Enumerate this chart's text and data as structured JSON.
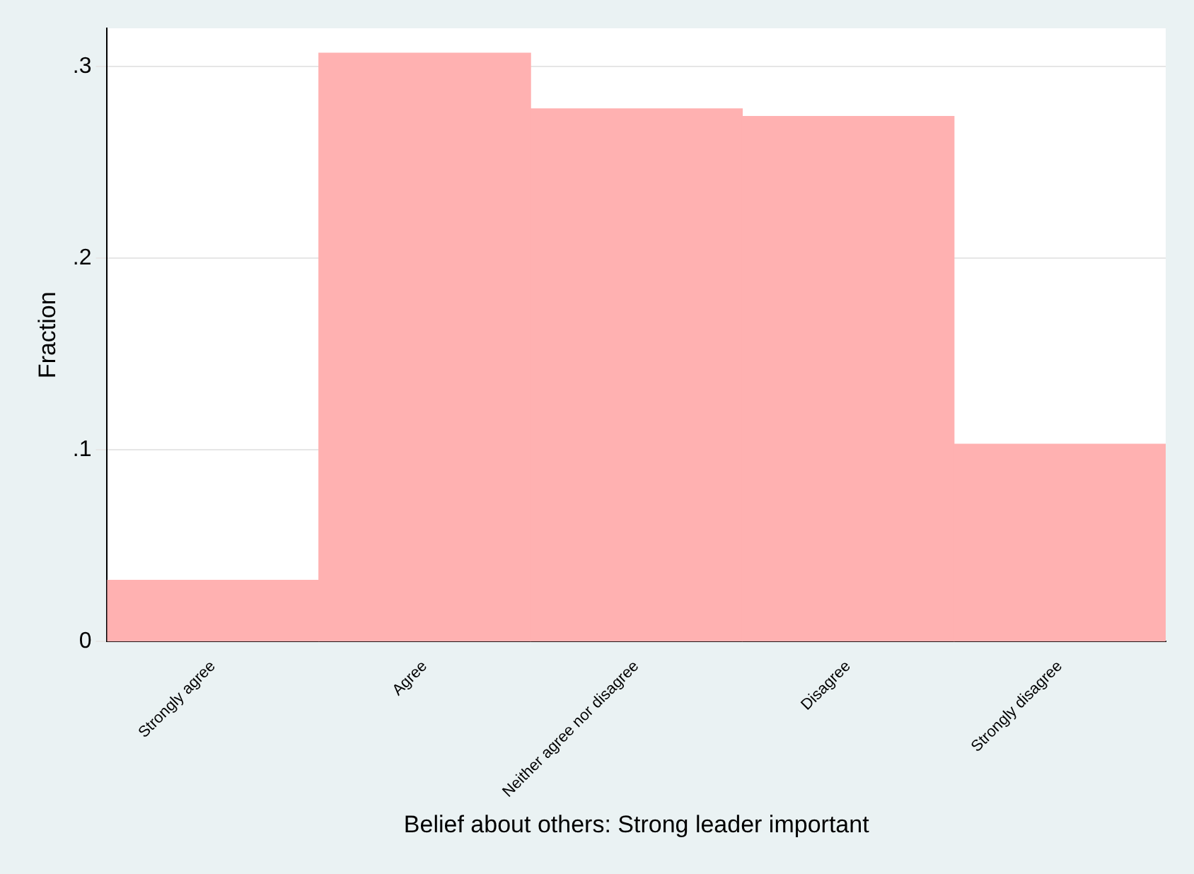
{
  "chart_data": {
    "type": "bar",
    "xlabel": "Belief about others: Strong leader important",
    "ylabel": "Fraction",
    "categories": [
      "Strongly agree",
      "Agree",
      "Neither agree nor disagree",
      "Disagree",
      "Strongly disagree"
    ],
    "values": [
      0.032,
      0.307,
      0.278,
      0.274,
      0.103
    ],
    "color": "#ffb1b1",
    "ylim": [
      0,
      0.32
    ],
    "yticks": [
      {
        "value": 0,
        "label": "0"
      },
      {
        "value": 0.1,
        "label": ".1"
      },
      {
        "value": 0.2,
        "label": ".2"
      },
      {
        "value": 0.3,
        "label": ".3"
      }
    ],
    "grid": "y",
    "legend": false
  }
}
